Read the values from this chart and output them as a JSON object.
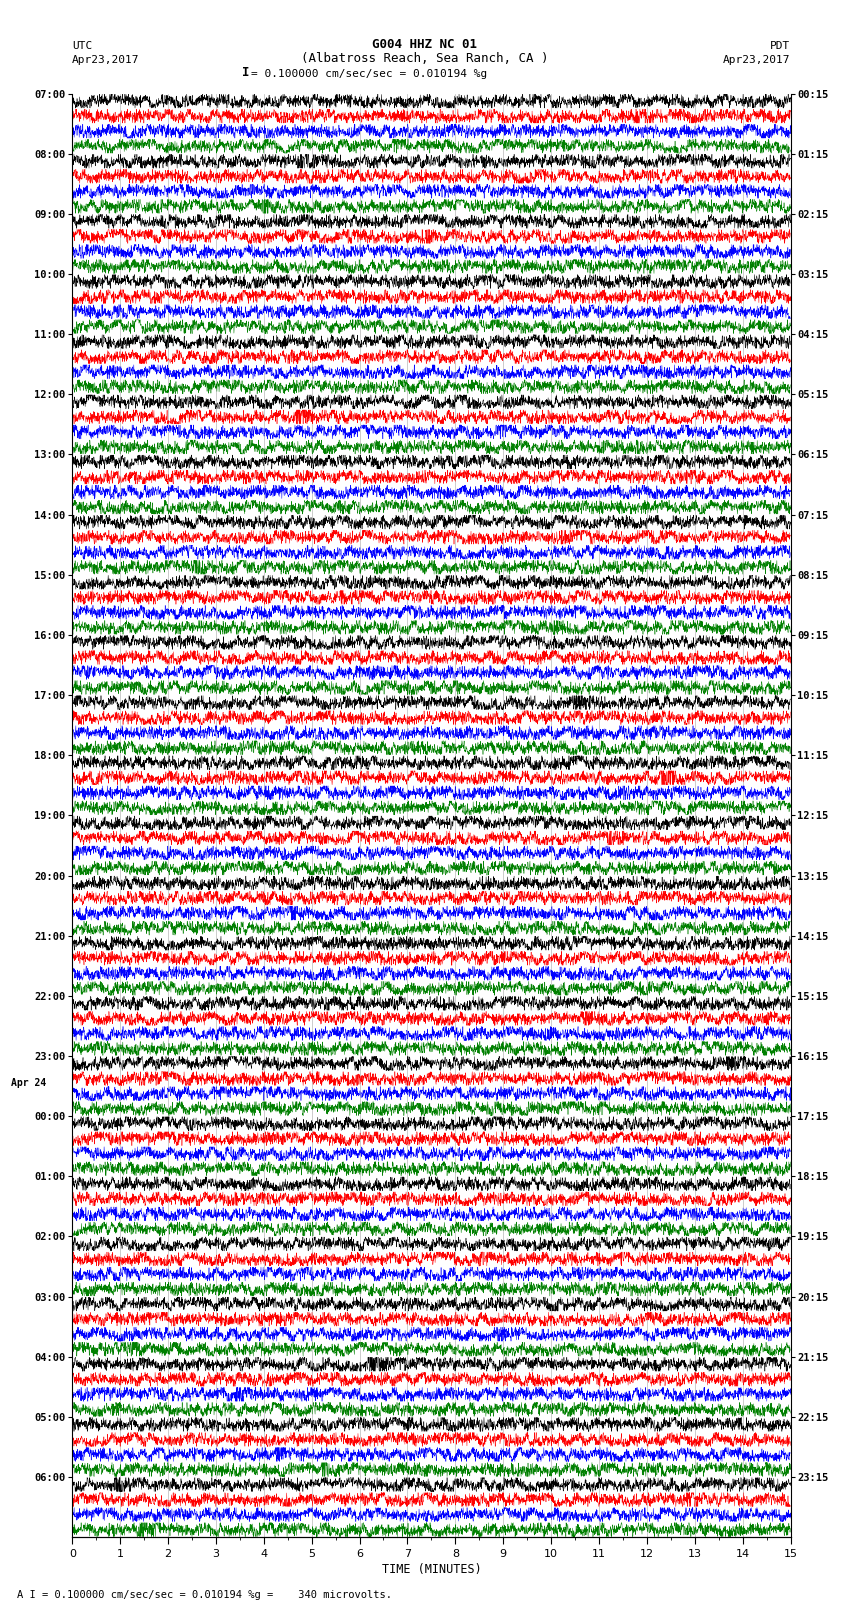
{
  "title_line1": "G004 HHZ NC 01",
  "title_line2": "(Albatross Reach, Sea Ranch, CA )",
  "scale_text": "= 0.100000 cm/sec/sec = 0.010194 %g",
  "scale_bar": "I",
  "bottom_text": "A I = 0.100000 cm/sec/sec = 0.010194 %g =    340 microvolts.",
  "utc_label": "UTC",
  "pdt_label": "PDT",
  "date_left": "Apr23,2017",
  "date_right": "Apr23,2017",
  "xlabel": "TIME (MINUTES)",
  "left_times": [
    "07:00",
    "08:00",
    "09:00",
    "10:00",
    "11:00",
    "12:00",
    "13:00",
    "14:00",
    "15:00",
    "16:00",
    "17:00",
    "18:00",
    "19:00",
    "20:00",
    "21:00",
    "22:00",
    "23:00",
    "Apr 24\n00:00",
    "01:00",
    "02:00",
    "03:00",
    "04:00",
    "05:00",
    "06:00"
  ],
  "right_times": [
    "00:15",
    "01:15",
    "02:15",
    "03:15",
    "04:15",
    "05:15",
    "06:15",
    "07:15",
    "08:15",
    "09:15",
    "10:15",
    "11:15",
    "12:15",
    "13:15",
    "14:15",
    "15:15",
    "16:15",
    "17:15",
    "18:15",
    "19:15",
    "20:15",
    "21:15",
    "22:15",
    "23:15"
  ],
  "n_rows": 24,
  "n_traces_per_row": 4,
  "colors": [
    "black",
    "red",
    "blue",
    "green"
  ],
  "noise_seed": 42,
  "background_color": "white",
  "figsize": [
    8.5,
    16.13
  ],
  "dpi": 100,
  "n_points": 3000,
  "trace_linewidth": 0.35,
  "vline_color": "#888888",
  "vline_alpha": 0.6,
  "vline_linewidth": 0.5
}
